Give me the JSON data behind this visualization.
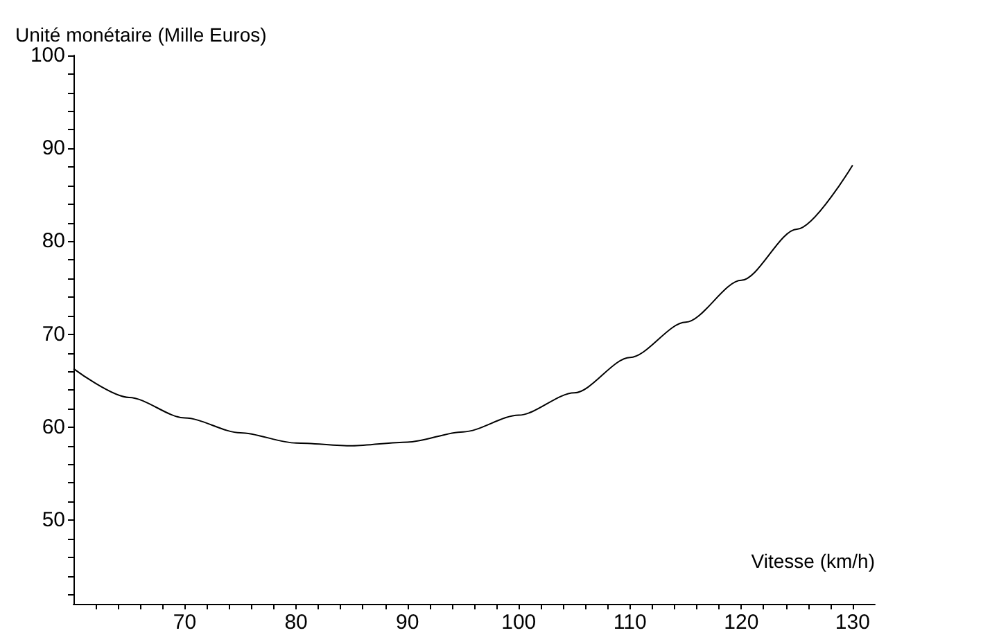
{
  "chart_data": {
    "type": "line",
    "ylabel": "Unité monétaire (Mille Euros)",
    "xlabel": "Vitesse (km/h)",
    "x": [
      60,
      65,
      70,
      75,
      80,
      85,
      90,
      95,
      100,
      105,
      110,
      115,
      120,
      125,
      130
    ],
    "series": [
      {
        "color": "#000000",
        "values": [
          66.3,
          63.2,
          61.0,
          59.4,
          58.3,
          58.0,
          58.4,
          59.5,
          61.3,
          63.7,
          67.5,
          71.3,
          75.8,
          81.3,
          88.2
        ]
      }
    ],
    "xlim": [
      60,
      132
    ],
    "ylim": [
      41,
      100
    ],
    "xticks": [
      {
        "value": 62,
        "label": null
      },
      {
        "value": 64,
        "label": null
      },
      {
        "value": 66,
        "label": null
      },
      {
        "value": 68,
        "label": null
      },
      70,
      {
        "value": 72,
        "label": null
      },
      {
        "value": 74,
        "label": null
      },
      {
        "value": 76,
        "label": null
      },
      {
        "value": 78,
        "label": null
      },
      80,
      {
        "value": 82,
        "label": null
      },
      {
        "value": 84,
        "label": null
      },
      {
        "value": 86,
        "label": null
      },
      {
        "value": 88,
        "label": null
      },
      90,
      {
        "value": 92,
        "label": null
      },
      {
        "value": 94,
        "label": null
      },
      {
        "value": 96,
        "label": null
      },
      {
        "value": 98,
        "label": null
      },
      100,
      {
        "value": 102,
        "label": null
      },
      {
        "value": 104,
        "label": null
      },
      {
        "value": 106,
        "label": null
      },
      {
        "value": 108,
        "label": null
      },
      110,
      {
        "value": 112,
        "label": null
      },
      {
        "value": 114,
        "label": null
      },
      {
        "value": 116,
        "label": null
      },
      {
        "value": 118,
        "label": null
      },
      120,
      {
        "value": 122,
        "label": null
      },
      {
        "value": 124,
        "label": null
      },
      {
        "value": 126,
        "label": null
      },
      {
        "value": 128,
        "label": null
      },
      130
    ],
    "yticks": [
      {
        "value": 42,
        "label": null
      },
      {
        "value": 44,
        "label": null
      },
      {
        "value": 46,
        "label": null
      },
      {
        "value": 48,
        "label": null
      },
      50,
      {
        "value": 52,
        "label": null
      },
      {
        "value": 54,
        "label": null
      },
      {
        "value": 56,
        "label": null
      },
      {
        "value": 58,
        "label": null
      },
      60,
      {
        "value": 62,
        "label": null
      },
      {
        "value": 64,
        "label": null
      },
      {
        "value": 66,
        "label": null
      },
      {
        "value": 68,
        "label": null
      },
      70,
      {
        "value": 72,
        "label": null
      },
      {
        "value": 74,
        "label": null
      },
      {
        "value": 76,
        "label": null
      },
      {
        "value": 78,
        "label": null
      },
      80,
      {
        "value": 82,
        "label": null
      },
      {
        "value": 84,
        "label": null
      },
      {
        "value": 86,
        "label": null
      },
      {
        "value": 88,
        "label": null
      },
      90,
      {
        "value": 92,
        "label": null
      },
      {
        "value": 94,
        "label": null
      },
      {
        "value": 96,
        "label": null
      },
      {
        "value": 98,
        "label": null
      },
      100
    ],
    "grid": false,
    "marker": "none",
    "line_style": "solid"
  }
}
